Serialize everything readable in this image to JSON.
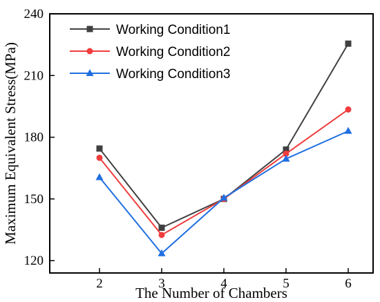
{
  "chart_data": {
    "type": "line",
    "title": "",
    "xlabel": "The Number of Chambers",
    "ylabel": "Maximum Equivalent Stress(MPa)",
    "x": [
      2,
      3,
      4,
      5,
      6
    ],
    "xlim": [
      1.2,
      6.4
    ],
    "ylim": [
      114,
      240
    ],
    "xticks": [
      2,
      3,
      4,
      5,
      6
    ],
    "yticks": [
      120,
      150,
      180,
      210,
      240
    ],
    "grid": false,
    "legend_position": "top-left",
    "series": [
      {
        "name": "Working Condition1",
        "values": [
          174.5,
          136,
          150,
          174,
          225.5
        ],
        "color": "#404040",
        "marker": "square"
      },
      {
        "name": "Working Condition2",
        "values": [
          170,
          132.5,
          150,
          172,
          193.5
        ],
        "color": "#f03c3c",
        "marker": "circle"
      },
      {
        "name": "Working Condition3",
        "values": [
          160.5,
          123.5,
          150.5,
          169.5,
          183
        ],
        "color": "#1f6fe0",
        "marker": "triangle"
      }
    ]
  }
}
